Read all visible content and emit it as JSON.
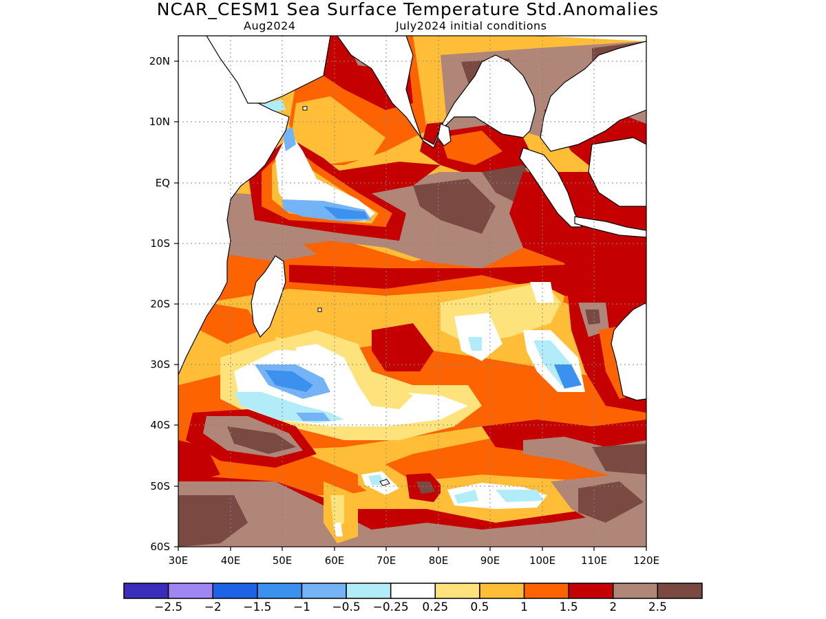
{
  "title": "NCAR_CESM1 Sea Surface Temperature Std.Anomalies",
  "valid_month": "Aug2024",
  "init_conditions": "July2024 initial conditions",
  "axes": {
    "lat_labels": [
      "20N",
      "10N",
      "EQ",
      "10S",
      "20S",
      "30S",
      "40S",
      "50S",
      "60S"
    ],
    "lon_labels": [
      "30E",
      "40E",
      "50E",
      "60E",
      "70E",
      "80E",
      "90E",
      "100E",
      "110E",
      "120E"
    ]
  },
  "colorbar": {
    "colors": [
      "#3a2dbc",
      "#9f86f4",
      "#1e62e6",
      "#3c91ef",
      "#73b3f6",
      "#b2ecf8",
      "#ffffff",
      "#fee37d",
      "#ffbd38",
      "#fe6302",
      "#c40000",
      "#b08679",
      "#7a4a42"
    ],
    "labels": [
      "−2.5",
      "−2",
      "−1.5",
      "−1",
      "−0.5",
      "−0.25",
      "0.25",
      "0.5",
      "1",
      "1.5",
      "2",
      "2.5"
    ]
  }
}
